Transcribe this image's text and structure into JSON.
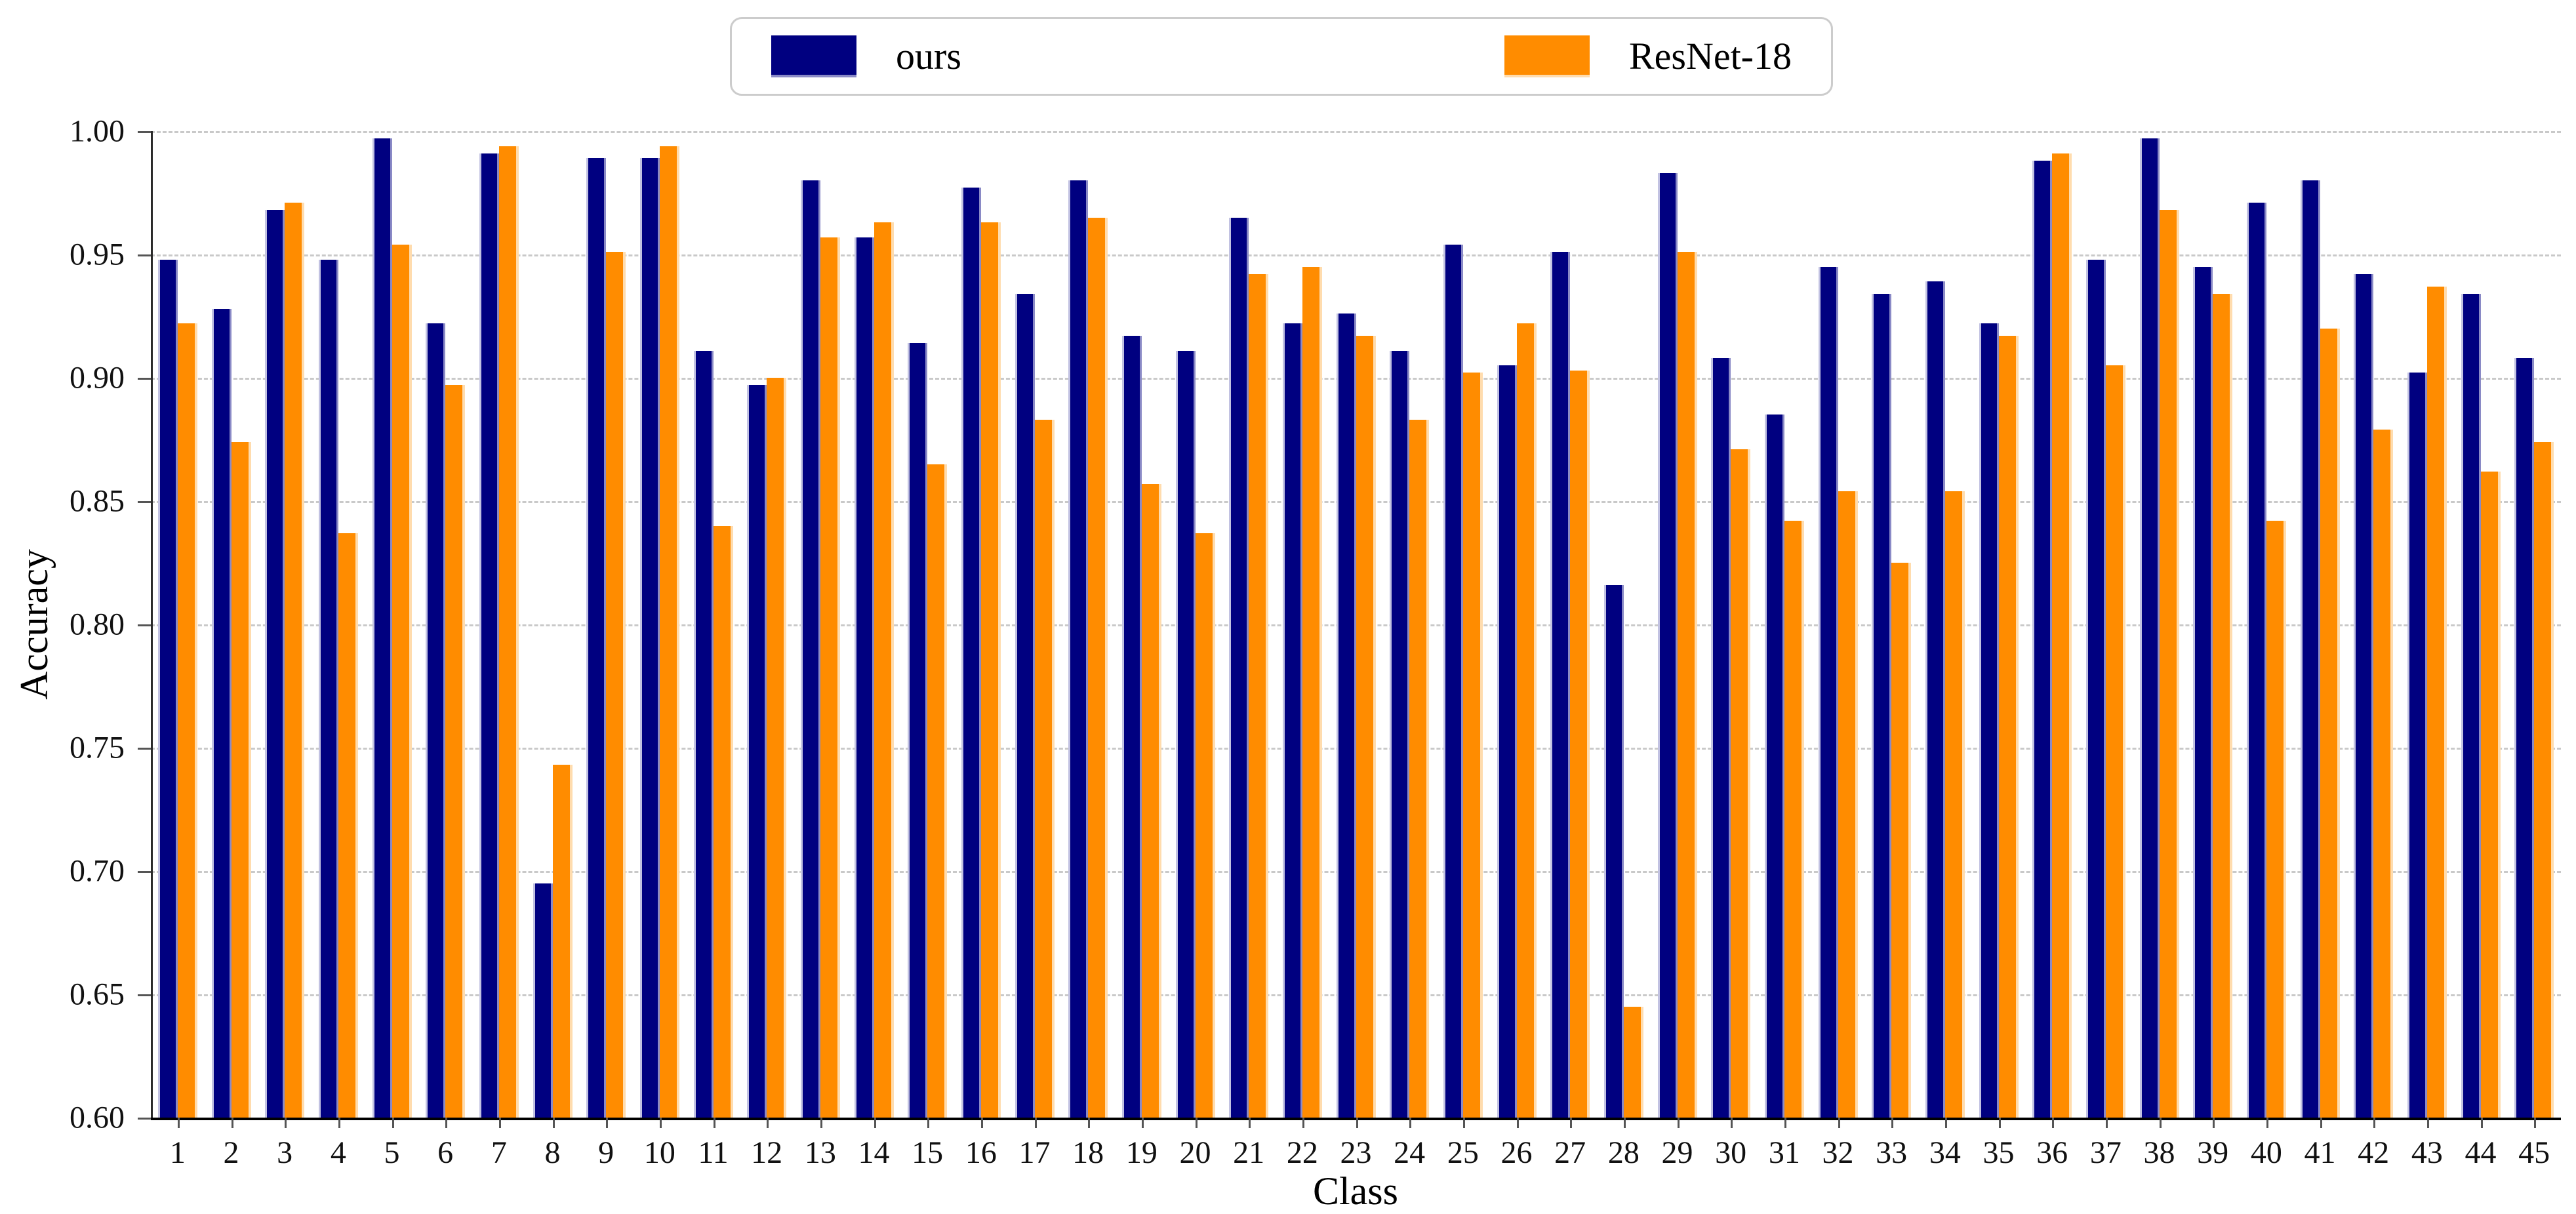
{
  "chart_data": {
    "type": "bar",
    "title": "",
    "xlabel": "Class",
    "ylabel": "Accuracy",
    "ylim": [
      0.6,
      1.0
    ],
    "ytick_labels": [
      "1.00",
      "0.95",
      "0.90",
      "0.85",
      "0.80",
      "0.75",
      "0.70",
      "0.65",
      "0.60"
    ],
    "grid": "horizontal-dashed",
    "legend_position": "top-center",
    "categories": [
      1,
      2,
      3,
      4,
      5,
      6,
      7,
      8,
      9,
      10,
      11,
      12,
      13,
      14,
      15,
      16,
      17,
      18,
      19,
      20,
      21,
      22,
      23,
      24,
      25,
      26,
      27,
      28,
      29,
      30,
      31,
      32,
      33,
      34,
      35,
      36,
      37,
      38,
      39,
      40,
      41,
      42,
      43,
      44,
      45
    ],
    "series": [
      {
        "name": "ours",
        "color": "#000080",
        "values": [
          0.948,
          0.928,
          0.968,
          0.948,
          0.997,
          0.922,
          0.991,
          0.695,
          0.989,
          0.989,
          0.911,
          0.897,
          0.98,
          0.957,
          0.914,
          0.977,
          0.934,
          0.98,
          0.917,
          0.911,
          0.965,
          0.922,
          0.926,
          0.911,
          0.954,
          0.905,
          0.951,
          0.816,
          0.983,
          0.908,
          0.885,
          0.945,
          0.934,
          0.939,
          0.922,
          0.988,
          0.948,
          0.997,
          0.945,
          0.971,
          0.98,
          0.942,
          0.902,
          0.934,
          0.908
        ]
      },
      {
        "name": "ResNet-18",
        "color": "#FF8C00",
        "values": [
          0.922,
          0.874,
          0.971,
          0.837,
          0.954,
          0.897,
          0.994,
          0.743,
          0.951,
          0.994,
          0.84,
          0.9,
          0.957,
          0.963,
          0.865,
          0.963,
          0.883,
          0.965,
          0.857,
          0.837,
          0.942,
          0.945,
          0.917,
          0.883,
          0.902,
          0.922,
          0.903,
          0.645,
          0.951,
          0.871,
          0.842,
          0.854,
          0.825,
          0.854,
          0.917,
          0.991,
          0.905,
          0.968,
          0.934,
          0.842,
          0.92,
          0.879,
          0.937,
          0.862,
          0.874
        ]
      }
    ]
  }
}
